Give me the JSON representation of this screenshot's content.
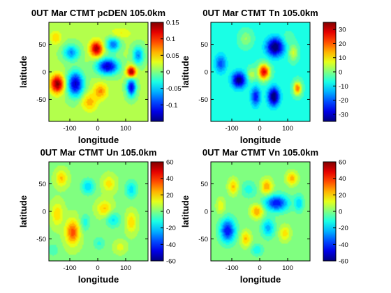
{
  "figure": {
    "background": "#ffffff"
  },
  "chart_data": [
    {
      "type": "heatmap",
      "title": "0UT Mar CTMT pcDEN 105.0km",
      "xlabel": "longitude",
      "ylabel": "latitude",
      "xlim": [
        -175,
        180
      ],
      "ylim": [
        -90,
        90
      ],
      "xticks": [
        "-100",
        "0",
        "100"
      ],
      "yticks": [
        "50",
        "0",
        "-50"
      ],
      "colorbar": {
        "min": -0.15,
        "max": 0.15,
        "ticks": [
          "0.15",
          "0.1",
          "0.05",
          "0",
          "-0.05",
          "-0.1"
        ]
      },
      "base": 0.01,
      "blobs": [
        [
          -145,
          -22,
          24,
          16,
          0.14
        ],
        [
          -95,
          35,
          28,
          14,
          -0.08
        ],
        [
          -5,
          42,
          22,
          14,
          0.13
        ],
        [
          55,
          50,
          24,
          13,
          -0.09
        ],
        [
          145,
          30,
          20,
          16,
          -0.08
        ],
        [
          -80,
          -22,
          28,
          22,
          -0.14
        ],
        [
          35,
          10,
          38,
          14,
          -0.14
        ],
        [
          120,
          0,
          16,
          10,
          0.14
        ],
        [
          10,
          -35,
          24,
          14,
          0.06
        ],
        [
          120,
          -28,
          16,
          16,
          -0.13
        ],
        [
          -30,
          -55,
          28,
          16,
          0.05
        ],
        [
          80,
          70,
          40,
          10,
          0.03
        ],
        [
          -150,
          62,
          20,
          12,
          0.04
        ]
      ]
    },
    {
      "type": "heatmap",
      "title": "0UT Mar CTMT Tn 105.0km",
      "xlabel": "longitude",
      "ylabel": "latitude",
      "xlim": [
        -175,
        180
      ],
      "ylim": [
        -90,
        90
      ],
      "xticks": [
        "-100",
        "0",
        "100"
      ],
      "yticks": [
        "50",
        "0",
        "-50"
      ],
      "colorbar": {
        "min": -35,
        "max": 35,
        "ticks": [
          "30",
          "20",
          "10",
          "0",
          "-10",
          "-20",
          "-30"
        ]
      },
      "base": -6,
      "blobs": [
        [
          55,
          45,
          30,
          16,
          -32
        ],
        [
          120,
          35,
          16,
          14,
          12
        ],
        [
          -50,
          60,
          22,
          14,
          8
        ],
        [
          15,
          0,
          20,
          14,
          34
        ],
        [
          -75,
          -15,
          24,
          14,
          -30
        ],
        [
          -30,
          -5,
          16,
          12,
          10
        ],
        [
          50,
          -45,
          20,
          16,
          -32
        ],
        [
          -15,
          -45,
          16,
          16,
          -20
        ],
        [
          135,
          -30,
          14,
          12,
          25
        ],
        [
          -140,
          15,
          20,
          16,
          -15
        ],
        [
          100,
          60,
          20,
          12,
          4
        ]
      ]
    },
    {
      "type": "heatmap",
      "title": "0UT Mar CTMT Un 105.0km",
      "xlabel": "longitude",
      "ylabel": "latitude",
      "xlim": [
        -175,
        180
      ],
      "ylim": [
        -90,
        90
      ],
      "xticks": [
        "-100",
        "0",
        "100"
      ],
      "yticks": [
        "50",
        "0",
        "-50"
      ],
      "colorbar": {
        "min": -60,
        "max": 60,
        "ticks": [
          "60",
          "40",
          "20",
          "0",
          "-20",
          "-40",
          "-60"
        ]
      },
      "base": 2,
      "blobs": [
        [
          -90,
          -38,
          24,
          22,
          34
        ],
        [
          -145,
          -5,
          20,
          20,
          18
        ],
        [
          -130,
          60,
          20,
          14,
          20
        ],
        [
          -35,
          45,
          24,
          14,
          -22
        ],
        [
          25,
          5,
          26,
          14,
          20
        ],
        [
          -45,
          -20,
          18,
          16,
          -14
        ],
        [
          55,
          -15,
          26,
          14,
          -18
        ],
        [
          40,
          50,
          22,
          14,
          16
        ],
        [
          120,
          40,
          22,
          16,
          -20
        ],
        [
          120,
          -20,
          18,
          18,
          18
        ],
        [
          5,
          -58,
          22,
          12,
          -12
        ],
        [
          80,
          -65,
          20,
          10,
          10
        ],
        [
          -160,
          -70,
          20,
          12,
          -10
        ]
      ]
    },
    {
      "type": "heatmap",
      "title": "0UT Mar CTMT Vn 105.0km",
      "xlabel": "longitude",
      "ylabel": "latitude",
      "xlim": [
        -175,
        180
      ],
      "ylim": [
        -90,
        90
      ],
      "xticks": [
        "-100",
        "0",
        "100"
      ],
      "yticks": [
        "50",
        "0",
        "-50"
      ],
      "colorbar": {
        "min": -60,
        "max": 60,
        "ticks": [
          "60",
          "40",
          "20",
          "0",
          "-20",
          "-40",
          "-60"
        ]
      },
      "base": 0,
      "blobs": [
        [
          -115,
          -35,
          26,
          20,
          -45
        ],
        [
          60,
          15,
          40,
          14,
          -44
        ],
        [
          -40,
          40,
          26,
          14,
          -12
        ],
        [
          -95,
          45,
          18,
          14,
          22
        ],
        [
          -10,
          0,
          22,
          12,
          28
        ],
        [
          25,
          45,
          20,
          14,
          26
        ],
        [
          115,
          60,
          20,
          12,
          24
        ],
        [
          -50,
          -50,
          18,
          14,
          22
        ],
        [
          30,
          -30,
          22,
          16,
          -24
        ],
        [
          90,
          -40,
          20,
          14,
          18
        ],
        [
          -140,
          10,
          16,
          14,
          14
        ],
        [
          140,
          15,
          16,
          14,
          -20
        ],
        [
          -10,
          -70,
          20,
          10,
          -14
        ]
      ]
    }
  ]
}
